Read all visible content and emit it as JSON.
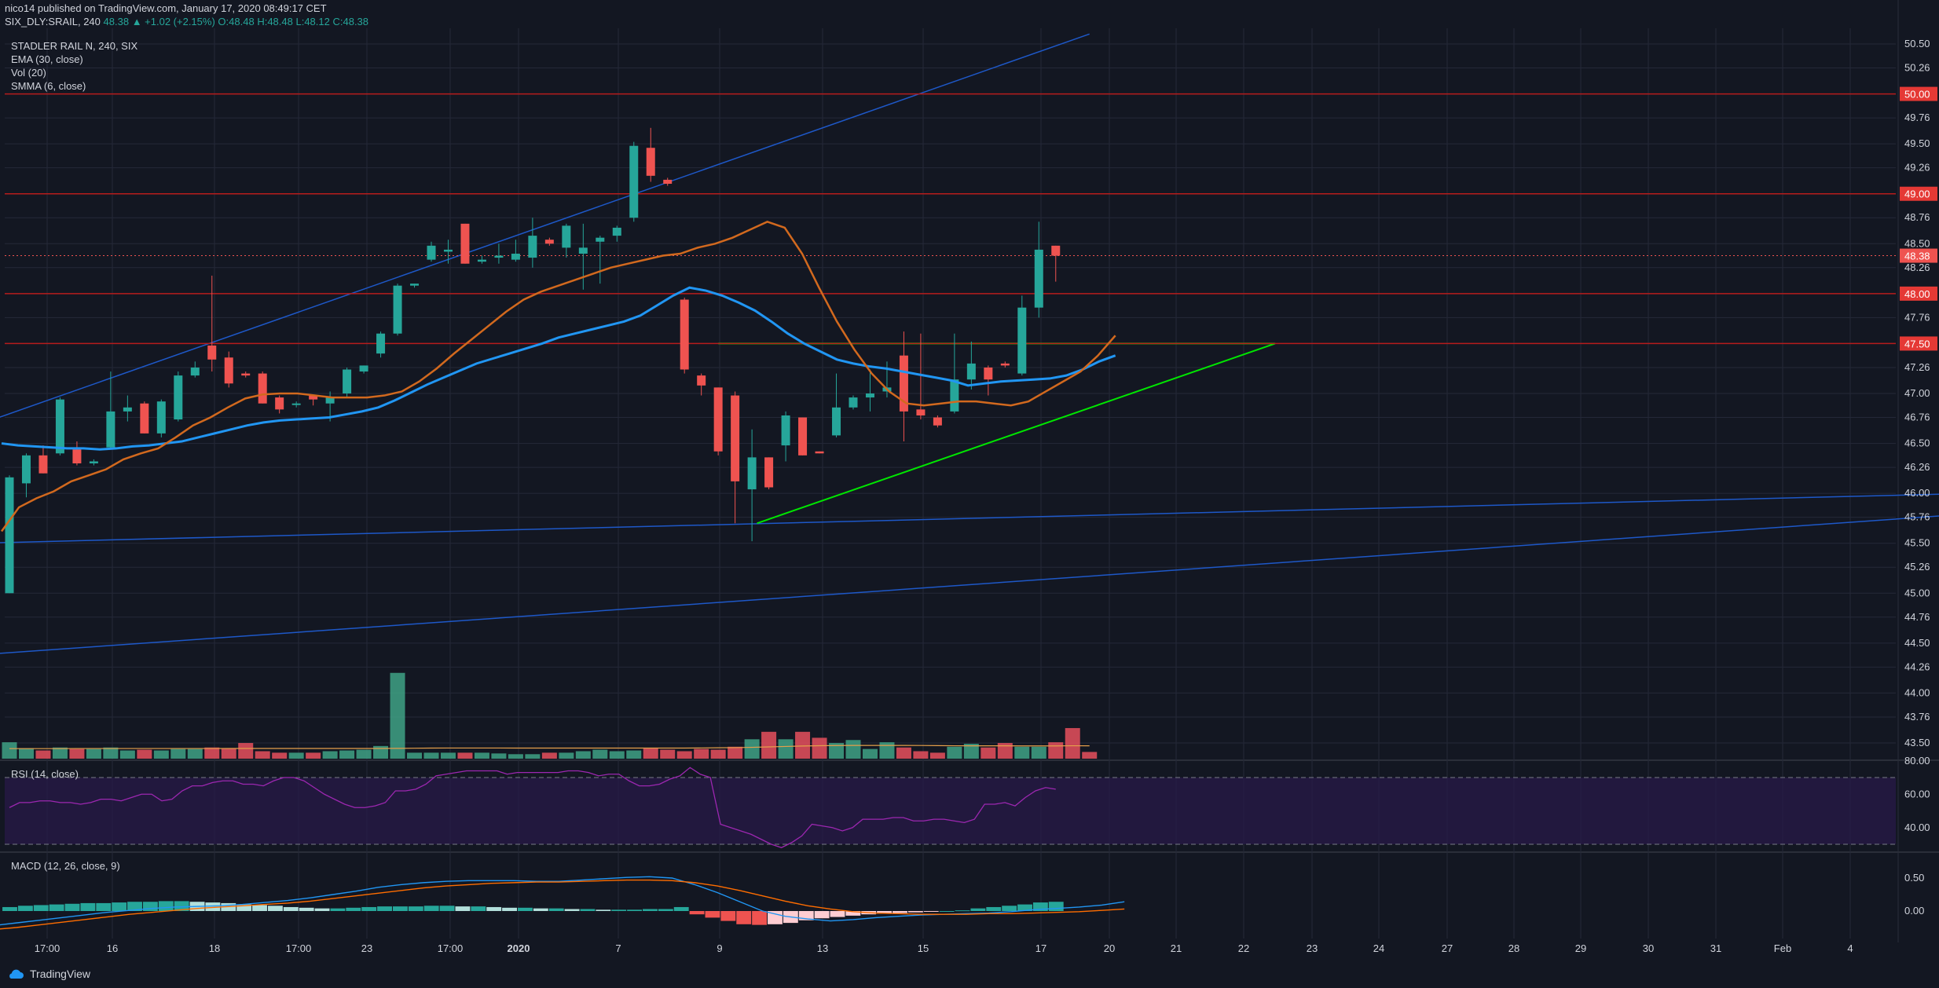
{
  "header": {
    "published": "nico14 published on TradingView.com, January 17, 2020 08:49:17 CET",
    "symbol_line": "SIX_DLY:SRAIL, 240",
    "last_price": "48.38",
    "change": "▲ +1.02 (+2.15%)",
    "o": "O:48.48",
    "h": "H:48.48",
    "l": "L:48.12",
    "c": "C:48.38"
  },
  "indicators": {
    "title": "STADLER RAIL N, 240, SIX",
    "ema": "EMA (30, close)",
    "vol": "Vol (20)",
    "smma": "SMMA (6, close)",
    "rsi": "RSI (14, close)",
    "macd": "MACD (12, 26, close, 9)"
  },
  "footer": {
    "brand": "TradingView"
  },
  "colors": {
    "background": "#131722",
    "grid": "#242838",
    "up": "#26a69a",
    "down": "#ef5350",
    "ema": "#2196f3",
    "smma": "#d2691e",
    "support_line": "#00e600",
    "trend_line": "#1e58c8",
    "level_line": "#b71c1c",
    "rsi": "#9c27b0",
    "rsi_band": "#2a1a4a"
  },
  "chart_data": [
    {
      "type": "candlestick",
      "title": "STADLER RAIL N, 240, SIX",
      "x_tick_labels": [
        "17:00",
        "16",
        "18",
        "17:00",
        "23",
        "17:00",
        "2020",
        "7",
        "9",
        "13",
        "15",
        "17",
        "20",
        "21",
        "22",
        "23",
        "24",
        "27",
        "28",
        "29",
        "30",
        "31",
        "Feb",
        "4"
      ],
      "y_tick_labels": [
        "50.50",
        "50.26",
        "50.00",
        "49.76",
        "49.50",
        "49.26",
        "49.00",
        "48.76",
        "48.50",
        "48.26",
        "48.00",
        "47.76",
        "47.50",
        "47.26",
        "47.00",
        "46.76",
        "46.50",
        "46.26",
        "46.00",
        "45.76",
        "45.50",
        "45.26",
        "45.00",
        "44.76",
        "44.50",
        "44.26",
        "44.00",
        "43.76",
        "43.50"
      ],
      "ylim": [
        43.3,
        50.7
      ],
      "grid": true,
      "ohlc": [
        {
          "o": 45.0,
          "h": 46.18,
          "l": 45.0,
          "c": 46.16
        },
        {
          "o": 46.1,
          "h": 46.4,
          "l": 45.96,
          "c": 46.38
        },
        {
          "o": 46.38,
          "h": 46.48,
          "l": 46.2,
          "c": 46.2
        },
        {
          "o": 46.4,
          "h": 46.96,
          "l": 46.38,
          "c": 46.94
        },
        {
          "o": 46.44,
          "h": 46.52,
          "l": 46.28,
          "c": 46.3
        },
        {
          "o": 46.3,
          "h": 46.34,
          "l": 46.28,
          "c": 46.32
        },
        {
          "o": 46.46,
          "h": 47.22,
          "l": 46.44,
          "c": 46.82
        },
        {
          "o": 46.82,
          "h": 46.98,
          "l": 46.72,
          "c": 46.86
        },
        {
          "o": 46.9,
          "h": 46.92,
          "l": 46.6,
          "c": 46.6
        },
        {
          "o": 46.6,
          "h": 46.94,
          "l": 46.56,
          "c": 46.92
        },
        {
          "o": 46.74,
          "h": 47.22,
          "l": 46.72,
          "c": 47.18
        },
        {
          "o": 47.18,
          "h": 47.32,
          "l": 47.16,
          "c": 47.26
        },
        {
          "o": 47.48,
          "h": 48.18,
          "l": 47.22,
          "c": 47.34
        },
        {
          "o": 47.36,
          "h": 47.42,
          "l": 47.06,
          "c": 47.1
        },
        {
          "o": 47.2,
          "h": 47.22,
          "l": 47.16,
          "c": 47.18
        },
        {
          "o": 47.2,
          "h": 47.22,
          "l": 46.9,
          "c": 46.9
        },
        {
          "o": 46.96,
          "h": 46.98,
          "l": 46.8,
          "c": 46.84
        },
        {
          "o": 46.9,
          "h": 46.92,
          "l": 46.86,
          "c": 46.9
        },
        {
          "o": 46.98,
          "h": 46.98,
          "l": 46.88,
          "c": 46.94
        },
        {
          "o": 46.9,
          "h": 47.02,
          "l": 46.72,
          "c": 46.96
        },
        {
          "o": 47.0,
          "h": 47.26,
          "l": 46.96,
          "c": 47.24
        },
        {
          "o": 47.22,
          "h": 47.28,
          "l": 47.2,
          "c": 47.28
        },
        {
          "o": 47.4,
          "h": 47.62,
          "l": 47.36,
          "c": 47.6
        },
        {
          "o": 47.6,
          "h": 48.1,
          "l": 47.58,
          "c": 48.08
        },
        {
          "o": 48.08,
          "h": 48.1,
          "l": 48.06,
          "c": 48.1
        },
        {
          "o": 48.34,
          "h": 48.52,
          "l": 48.32,
          "c": 48.48
        },
        {
          "o": 48.42,
          "h": 48.54,
          "l": 48.3,
          "c": 48.44
        },
        {
          "o": 48.7,
          "h": 48.7,
          "l": 48.3,
          "c": 48.3
        },
        {
          "o": 48.32,
          "h": 48.38,
          "l": 48.3,
          "c": 48.34
        },
        {
          "o": 48.36,
          "h": 48.5,
          "l": 48.3,
          "c": 48.38
        },
        {
          "o": 48.34,
          "h": 48.54,
          "l": 48.32,
          "c": 48.4
        },
        {
          "o": 48.36,
          "h": 48.76,
          "l": 48.26,
          "c": 48.58
        },
        {
          "o": 48.54,
          "h": 48.56,
          "l": 48.48,
          "c": 48.5
        },
        {
          "o": 48.46,
          "h": 48.7,
          "l": 48.36,
          "c": 48.68
        },
        {
          "o": 48.4,
          "h": 48.7,
          "l": 48.04,
          "c": 48.46
        },
        {
          "o": 48.52,
          "h": 48.58,
          "l": 48.1,
          "c": 48.56
        },
        {
          "o": 48.58,
          "h": 48.68,
          "l": 48.52,
          "c": 48.66
        },
        {
          "o": 48.76,
          "h": 49.52,
          "l": 48.72,
          "c": 49.48
        },
        {
          "o": 49.46,
          "h": 49.66,
          "l": 49.12,
          "c": 49.18
        },
        {
          "o": 49.14,
          "h": 49.16,
          "l": 49.08,
          "c": 49.1
        },
        {
          "o": 47.94,
          "h": 47.96,
          "l": 47.2,
          "c": 47.24
        },
        {
          "o": 47.18,
          "h": 47.2,
          "l": 46.98,
          "c": 47.08
        },
        {
          "o": 47.06,
          "h": 47.06,
          "l": 46.38,
          "c": 46.42
        },
        {
          "o": 46.98,
          "h": 47.02,
          "l": 45.7,
          "c": 46.12
        },
        {
          "o": 46.04,
          "h": 46.64,
          "l": 45.52,
          "c": 46.36
        },
        {
          "o": 46.36,
          "h": 46.36,
          "l": 46.04,
          "c": 46.06
        },
        {
          "o": 46.48,
          "h": 46.82,
          "l": 46.32,
          "c": 46.78
        },
        {
          "o": 46.76,
          "h": 46.76,
          "l": 46.38,
          "c": 46.38
        },
        {
          "o": 46.42,
          "h": 46.42,
          "l": 46.4,
          "c": 46.4
        },
        {
          "o": 46.58,
          "h": 47.2,
          "l": 46.56,
          "c": 46.86
        },
        {
          "o": 46.86,
          "h": 46.98,
          "l": 46.84,
          "c": 46.96
        },
        {
          "o": 46.96,
          "h": 47.24,
          "l": 46.82,
          "c": 47.0
        },
        {
          "o": 47.02,
          "h": 47.32,
          "l": 46.96,
          "c": 47.06
        },
        {
          "o": 47.38,
          "h": 47.62,
          "l": 46.52,
          "c": 46.82
        },
        {
          "o": 46.84,
          "h": 47.6,
          "l": 46.74,
          "c": 46.78
        },
        {
          "o": 46.76,
          "h": 46.78,
          "l": 46.66,
          "c": 46.68
        },
        {
          "o": 46.82,
          "h": 47.6,
          "l": 46.8,
          "c": 47.14
        },
        {
          "o": 47.14,
          "h": 47.52,
          "l": 47.04,
          "c": 47.3
        },
        {
          "o": 47.26,
          "h": 47.28,
          "l": 46.98,
          "c": 47.14
        },
        {
          "o": 47.3,
          "h": 47.32,
          "l": 47.26,
          "c": 47.28
        },
        {
          "o": 47.2,
          "h": 47.98,
          "l": 47.18,
          "c": 47.86
        },
        {
          "o": 47.86,
          "h": 48.72,
          "l": 47.76,
          "c": 48.44
        },
        {
          "o": 48.48,
          "h": 48.48,
          "l": 48.12,
          "c": 48.38
        }
      ],
      "ema_30": [
        46.5,
        46.48,
        46.47,
        46.46,
        46.45,
        46.45,
        46.44,
        46.45,
        46.47,
        46.48,
        46.5,
        46.52,
        46.56,
        46.6,
        46.64,
        46.68,
        46.71,
        46.73,
        46.74,
        46.75,
        46.76,
        46.79,
        46.82,
        46.86,
        46.93,
        47.01,
        47.09,
        47.16,
        47.23,
        47.3,
        47.35,
        47.4,
        47.45,
        47.5,
        47.56,
        47.6,
        47.64,
        47.68,
        47.72,
        47.78,
        47.88,
        47.98,
        48.06,
        48.03,
        47.98,
        47.91,
        47.83,
        47.72,
        47.6,
        47.5,
        47.42,
        47.34,
        47.3,
        47.27,
        47.25,
        47.22,
        47.19,
        47.16,
        47.13,
        47.08,
        47.1,
        47.12,
        47.13,
        47.14,
        47.15,
        47.18,
        47.24,
        47.32,
        47.38
      ],
      "smma_6": [
        45.62,
        45.86,
        45.95,
        46.02,
        46.12,
        46.18,
        46.24,
        46.34,
        46.4,
        46.45,
        46.56,
        46.68,
        46.76,
        46.86,
        46.95,
        46.99,
        47.0,
        47.0,
        46.98,
        46.96,
        46.96,
        46.96,
        46.98,
        47.02,
        47.12,
        47.25,
        47.4,
        47.54,
        47.68,
        47.82,
        47.94,
        48.02,
        48.08,
        48.14,
        48.2,
        48.26,
        48.3,
        48.34,
        48.38,
        48.4,
        48.46,
        48.5,
        48.56,
        48.64,
        48.72,
        48.66,
        48.4,
        48.05,
        47.72,
        47.44,
        47.2,
        47.02,
        46.9,
        46.88,
        46.9,
        46.92,
        46.92,
        46.9,
        46.88,
        46.92,
        47.02,
        47.12,
        47.22,
        47.38,
        47.58
      ],
      "horizontal_levels": [
        50.0,
        49.0,
        48.0,
        47.5
      ],
      "last_price_line": 48.38
    },
    {
      "type": "bar",
      "title": "Vol (20)",
      "values": [
        22,
        14,
        11,
        15,
        13,
        13,
        15,
        11,
        12,
        11,
        13,
        13,
        15,
        14,
        21,
        10,
        8,
        8,
        8,
        10,
        11,
        12,
        17,
        115,
        8,
        8,
        8,
        8,
        8,
        7,
        6,
        6,
        8,
        8,
        10,
        12,
        10,
        11,
        14,
        12,
        10,
        13,
        12,
        16,
        26,
        36,
        26,
        36,
        28,
        21,
        25,
        13,
        22,
        15,
        10,
        8,
        16,
        20,
        15,
        21,
        16,
        16,
        22,
        41,
        9
      ],
      "ma": [
        13.5,
        13.5,
        13.5,
        13.5,
        13.6,
        13.6,
        13.6,
        13.6,
        13.6,
        13.6,
        13.6,
        13.6,
        13.6,
        13.7,
        13.7,
        13.7,
        13.7,
        13.7,
        13.7,
        13.7,
        13.7,
        13.7,
        13.7,
        13.8,
        14.0,
        14.2,
        14.3,
        14.3,
        14.3,
        14.3,
        14.2,
        14.2,
        14.2,
        14.2,
        14.2,
        14.2,
        14.2,
        14.2,
        14.2,
        14.2,
        14.2,
        14.4,
        14.6,
        14.8,
        15.2,
        15.8,
        16.4,
        17.0,
        17.4,
        17.6,
        17.8,
        17.8,
        17.8,
        17.8,
        17.7,
        17.5,
        17.3,
        17.2,
        17.2,
        17.2,
        17.1,
        17.1,
        17.1,
        17.3,
        17.2
      ]
    },
    {
      "type": "line",
      "title": "RSI (14, close)",
      "y_tick_labels": [
        "80.00",
        "60.00",
        "40.00"
      ],
      "bands": [
        70,
        30
      ],
      "values": [
        52,
        55,
        55,
        56,
        56,
        55,
        55,
        54,
        55,
        57,
        57,
        56,
        58,
        60,
        60,
        56,
        57,
        62,
        65,
        65,
        67,
        68,
        68,
        66,
        66,
        65,
        68,
        70,
        70,
        68,
        64,
        60,
        57,
        54,
        52,
        52,
        53,
        55,
        62,
        62,
        63,
        66,
        71,
        72,
        73,
        74,
        74,
        74,
        74,
        72,
        73,
        73,
        73,
        73,
        73,
        74,
        74,
        73,
        71,
        72,
        72,
        68,
        65,
        65,
        66,
        69,
        71,
        76,
        72,
        70,
        42,
        40,
        38,
        36,
        33,
        30,
        28,
        31,
        35,
        42,
        41,
        40,
        38,
        40,
        45,
        45,
        45,
        46,
        46,
        44,
        44,
        45,
        45,
        44,
        43,
        45,
        54,
        54,
        55,
        53,
        58,
        62,
        64,
        63
      ]
    },
    {
      "type": "bar",
      "title": "MACD (12, 26, close, 9)",
      "y_tick_labels": [
        "0.50",
        "0.00"
      ],
      "histogram": [
        0.06,
        0.08,
        0.09,
        0.1,
        0.11,
        0.12,
        0.12,
        0.13,
        0.14,
        0.14,
        0.15,
        0.15,
        0.14,
        0.13,
        0.12,
        0.1,
        0.09,
        0.08,
        0.06,
        0.05,
        0.04,
        0.04,
        0.05,
        0.06,
        0.07,
        0.07,
        0.07,
        0.08,
        0.08,
        0.07,
        0.07,
        0.06,
        0.05,
        0.05,
        0.04,
        0.04,
        0.03,
        0.03,
        0.02,
        0.02,
        0.02,
        0.03,
        0.03,
        0.06,
        -0.05,
        -0.1,
        -0.15,
        -0.2,
        -0.21,
        -0.2,
        -0.18,
        -0.14,
        -0.11,
        -0.09,
        -0.07,
        -0.05,
        -0.04,
        -0.03,
        -0.02,
        -0.01,
        0.0,
        0.01,
        0.04,
        0.06,
        0.08,
        0.1,
        0.13,
        0.14
      ],
      "macd_line": [
        -0.22,
        -0.18,
        -0.14,
        -0.1,
        -0.06,
        -0.02,
        0.01,
        0.04,
        0.06,
        0.07,
        0.08,
        0.1,
        0.13,
        0.16,
        0.2,
        0.25,
        0.3,
        0.36,
        0.4,
        0.43,
        0.45,
        0.46,
        0.46,
        0.46,
        0.45,
        0.45,
        0.47,
        0.49,
        0.51,
        0.52,
        0.5,
        0.4,
        0.28,
        0.14,
        0.0,
        -0.08,
        -0.12,
        -0.15,
        -0.13,
        -0.1,
        -0.08,
        -0.06,
        -0.05,
        -0.04,
        -0.03,
        -0.01,
        0.02,
        0.04,
        0.06,
        0.09,
        0.14
      ],
      "signal_line": [
        -0.28,
        -0.25,
        -0.21,
        -0.17,
        -0.13,
        -0.09,
        -0.05,
        -0.02,
        0.01,
        0.04,
        0.06,
        0.08,
        0.1,
        0.12,
        0.15,
        0.19,
        0.23,
        0.27,
        0.31,
        0.35,
        0.38,
        0.4,
        0.42,
        0.43,
        0.44,
        0.44,
        0.45,
        0.46,
        0.47,
        0.47,
        0.46,
        0.43,
        0.38,
        0.31,
        0.23,
        0.15,
        0.08,
        0.03,
        -0.01,
        -0.03,
        -0.04,
        -0.05,
        -0.05,
        -0.05,
        -0.04,
        -0.04,
        -0.03,
        -0.02,
        -0.01,
        0.01,
        0.03
      ]
    }
  ]
}
